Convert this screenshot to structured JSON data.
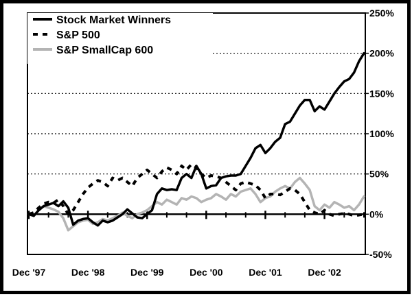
{
  "chart_data": {
    "type": "line",
    "title": "",
    "xlabel": "",
    "ylabel": "",
    "ylim": [
      -50,
      250
    ],
    "y_ticks": [
      -50,
      0,
      50,
      100,
      150,
      200,
      250
    ],
    "y_tick_labels": [
      "-50%",
      "0%",
      "50%",
      "100%",
      "150%",
      "200%",
      "250%"
    ],
    "y_axis_side": "right",
    "grid": "dotted horizontal lines at 50%, 100%, 150%, 200%",
    "x_start": "Dec '97",
    "x_end": "Mar '03",
    "x_tick_labels": [
      "Dec '97",
      "Dec '98",
      "Dec '99",
      "Dec '00",
      "Dec '01",
      "Dec '02"
    ],
    "legend_position": "top-left",
    "series": [
      {
        "name": "Stock Market Winners",
        "color": "#000000",
        "style": "solid",
        "values": [
          0,
          -2,
          5,
          10,
          12,
          14,
          10,
          16,
          8,
          -13,
          -8,
          -6,
          -5,
          -10,
          -14,
          -8,
          -10,
          -8,
          -4,
          0,
          6,
          1,
          -4,
          -5,
          0,
          5,
          25,
          32,
          30,
          31,
          30,
          45,
          50,
          45,
          60,
          50,
          32,
          35,
          36,
          45,
          47,
          48,
          48,
          50,
          60,
          70,
          82,
          86,
          76,
          82,
          90,
          95,
          112,
          115,
          125,
          135,
          142,
          142,
          128,
          134,
          130,
          140,
          150,
          158,
          165,
          168,
          176,
          190,
          200
        ]
      },
      {
        "name": "S&P 500",
        "color": "#000000",
        "style": "dashed",
        "values": [
          0,
          2,
          8,
          13,
          15,
          14,
          18,
          10,
          0,
          5,
          15,
          25,
          33,
          38,
          42,
          40,
          35,
          45,
          42,
          45,
          40,
          35,
          45,
          50,
          55,
          50,
          45,
          53,
          58,
          55,
          50,
          60,
          55,
          62,
          58,
          50,
          45,
          48,
          47,
          45,
          40,
          35,
          30,
          38,
          40,
          38,
          36,
          30,
          20,
          25,
          25,
          24,
          28,
          32,
          30,
          25,
          15,
          5,
          2,
          0,
          5,
          0,
          -2,
          0,
          1,
          0,
          -2,
          -1,
          0
        ]
      },
      {
        "name": "S&P SmallCap 600",
        "color": "#b4b4b4",
        "style": "solid",
        "values": [
          0,
          -2,
          5,
          10,
          8,
          6,
          3,
          -5,
          -20,
          -15,
          -10,
          -8,
          -7,
          -12,
          -10,
          -6,
          -8,
          -5,
          -2,
          2,
          -2,
          -5,
          0,
          2,
          5,
          10,
          15,
          12,
          18,
          15,
          12,
          20,
          18,
          22,
          20,
          15,
          18,
          20,
          25,
          22,
          18,
          25,
          22,
          28,
          30,
          32,
          25,
          15,
          20,
          22,
          28,
          32,
          35,
          32,
          40,
          45,
          38,
          30,
          10,
          5,
          12,
          8,
          15,
          12,
          8,
          10,
          5,
          12,
          22
        ]
      }
    ]
  }
}
